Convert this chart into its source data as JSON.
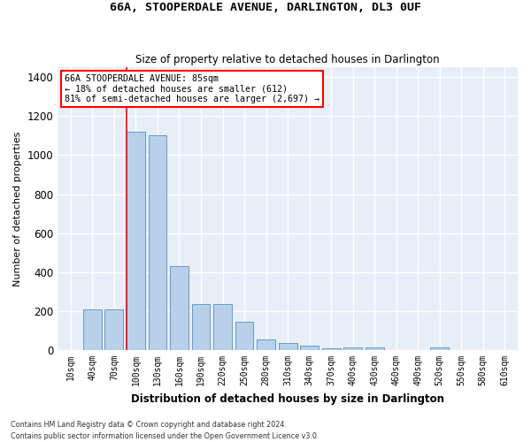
{
  "title": "66A, STOOPERDALE AVENUE, DARLINGTON, DL3 0UF",
  "subtitle": "Size of property relative to detached houses in Darlington",
  "xlabel": "Distribution of detached houses by size in Darlington",
  "ylabel": "Number of detached properties",
  "bar_color": "#b8d0ea",
  "bar_edge_color": "#6699cc",
  "background_color": "#e8eef8",
  "grid_color": "#ffffff",
  "categories": [
    "10sqm",
    "40sqm",
    "70sqm",
    "100sqm",
    "130sqm",
    "160sqm",
    "190sqm",
    "220sqm",
    "250sqm",
    "280sqm",
    "310sqm",
    "340sqm",
    "370sqm",
    "400sqm",
    "430sqm",
    "460sqm",
    "490sqm",
    "520sqm",
    "550sqm",
    "580sqm",
    "610sqm"
  ],
  "values": [
    0,
    210,
    210,
    1120,
    1100,
    430,
    235,
    235,
    145,
    55,
    38,
    25,
    10,
    15,
    15,
    0,
    0,
    15,
    0,
    0,
    0
  ],
  "ylim": [
    0,
    1450
  ],
  "yticks": [
    0,
    200,
    400,
    600,
    800,
    1000,
    1200,
    1400
  ],
  "red_line_x": 2.575,
  "annotation_title": "66A STOOPERDALE AVENUE: 85sqm",
  "annotation_line1": "← 18% of detached houses are smaller (612)",
  "annotation_line2": "81% of semi-detached houses are larger (2,697) →",
  "footer_line1": "Contains HM Land Registry data © Crown copyright and database right 2024.",
  "footer_line2": "Contains public sector information licensed under the Open Government Licence v3.0."
}
